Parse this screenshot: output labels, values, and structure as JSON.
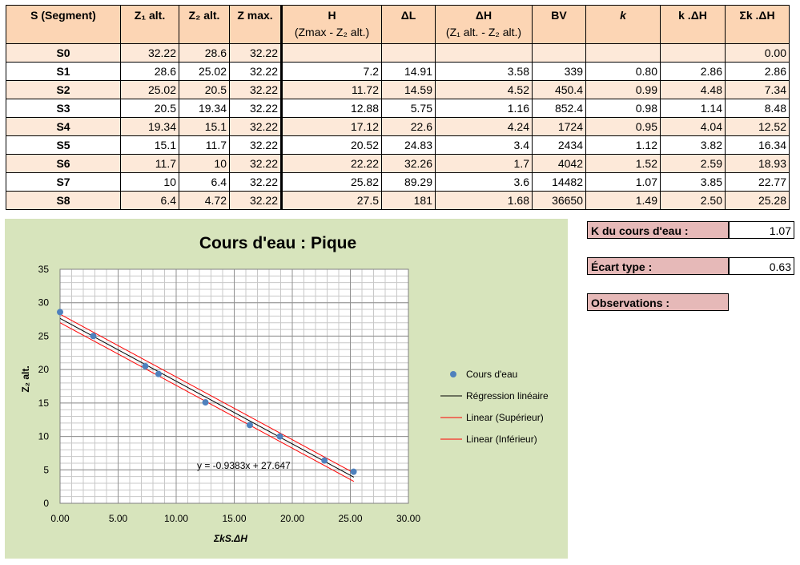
{
  "table": {
    "headers": [
      {
        "main": "S (Segment)",
        "sub": ""
      },
      {
        "main": "Z₁ alt.",
        "sub": ""
      },
      {
        "main": "Z₂ alt.",
        "sub": ""
      },
      {
        "main": "Z max.",
        "sub": ""
      },
      {
        "main": "H",
        "sub": "(Zmax - Z₂ alt.)"
      },
      {
        "main": "ΔL",
        "sub": ""
      },
      {
        "main": "ΔH",
        "sub": "(Z₁ alt. - Z₂ alt.)"
      },
      {
        "main": "BV",
        "sub": ""
      },
      {
        "main": "k",
        "sub": ""
      },
      {
        "main": "k .ΔH",
        "sub": ""
      },
      {
        "main": "Σk .ΔH",
        "sub": ""
      }
    ],
    "rows": [
      [
        "S0",
        "32.22",
        "28.6",
        "32.22",
        "",
        "",
        "",
        "",
        "",
        "",
        "0.00"
      ],
      [
        "S1",
        "28.6",
        "25.02",
        "32.22",
        "7.2",
        "14.91",
        "3.58",
        "339",
        "0.80",
        "2.86",
        "2.86"
      ],
      [
        "S2",
        "25.02",
        "20.5",
        "32.22",
        "11.72",
        "14.59",
        "4.52",
        "450.4",
        "0.99",
        "4.48",
        "7.34"
      ],
      [
        "S3",
        "20.5",
        "19.34",
        "32.22",
        "12.88",
        "5.75",
        "1.16",
        "852.4",
        "0.98",
        "1.14",
        "8.48"
      ],
      [
        "S4",
        "19.34",
        "15.1",
        "32.22",
        "17.12",
        "22.6",
        "4.24",
        "1724",
        "0.95",
        "4.04",
        "12.52"
      ],
      [
        "S5",
        "15.1",
        "11.7",
        "32.22",
        "20.52",
        "24.83",
        "3.4",
        "2434",
        "1.12",
        "3.82",
        "16.34"
      ],
      [
        "S6",
        "11.7",
        "10",
        "32.22",
        "22.22",
        "32.26",
        "1.7",
        "4042",
        "1.52",
        "2.59",
        "18.93"
      ],
      [
        "S7",
        "10",
        "6.4",
        "32.22",
        "25.82",
        "89.29",
        "3.6",
        "14482",
        "1.07",
        "3.85",
        "22.77"
      ],
      [
        "S8",
        "6.4",
        "4.72",
        "32.22",
        "27.5",
        "181",
        "1.68",
        "36650",
        "1.49",
        "2.50",
        "25.28"
      ]
    ]
  },
  "side": {
    "k_label": "K du cours d'eau :",
    "k_value": "1.07",
    "ecart_label": "Écart type :",
    "ecart_value": "0.63",
    "obs_label": "Observations :"
  },
  "chart_data": {
    "type": "scatter",
    "title": "Cours d'eau : Pique",
    "xlabel": "ΣkS.ΔH",
    "ylabel": "Z₂ alt.",
    "xlim": [
      0,
      30
    ],
    "ylim": [
      0,
      35
    ],
    "x_ticks": [
      "0.00",
      "5.00",
      "10.00",
      "15.00",
      "20.00",
      "25.00",
      "30.00"
    ],
    "y_ticks": [
      "0",
      "5",
      "10",
      "15",
      "20",
      "25",
      "30",
      "35"
    ],
    "grid": true,
    "legend_position": "right",
    "points": {
      "name": "Cours d'eau",
      "x": [
        0.0,
        2.86,
        7.34,
        8.48,
        12.52,
        16.34,
        18.93,
        22.77,
        25.28
      ],
      "y": [
        28.6,
        25.02,
        20.5,
        19.34,
        15.1,
        11.7,
        10,
        6.4,
        4.72
      ]
    },
    "regression": {
      "name": "Régression linéaire",
      "slope": -0.9383,
      "intercept": 27.647
    },
    "upper": {
      "name": "Linear (Supérieur)",
      "slope": -0.9383,
      "intercept": 28.28
    },
    "lower": {
      "name": "Linear (Inférieur)",
      "slope": -0.9383,
      "intercept": 27.01
    },
    "equation": "y = -0.9383x + 27.647",
    "colors": {
      "points": "#4f81bd",
      "regression": "#000000",
      "bounds": "#ff0000",
      "background": "#d7e4bc"
    }
  }
}
